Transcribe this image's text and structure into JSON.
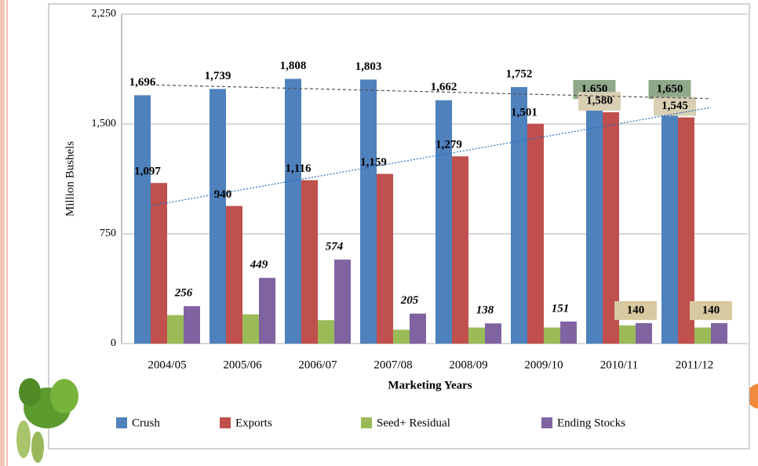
{
  "chart_data": {
    "type": "bar",
    "y_label": "Million Bushels",
    "x_label": "Marketing Years",
    "categories": [
      "2004/05",
      "2005/06",
      "2006/07",
      "2007/08",
      "2008/09",
      "2009/10",
      "2010/11",
      "2011/12"
    ],
    "series": [
      {
        "name": "Crush",
        "color": "#4f81bd",
        "values": [
          1696,
          1739,
          1808,
          1803,
          1662,
          1752,
          1650,
          1650
        ],
        "value_labels": [
          "1,696",
          "1,739",
          "1,808",
          "1,803",
          "1,662",
          "1,752",
          "1,650",
          "1,650"
        ]
      },
      {
        "name": "Exports",
        "color": "#c0504d",
        "values": [
          1097,
          940,
          1116,
          1159,
          1279,
          1501,
          1580,
          1545
        ],
        "value_labels": [
          "1,097",
          "940",
          "1,116",
          "1,159",
          "1,279",
          "1,501",
          "1,580",
          "1,545"
        ]
      },
      {
        "name": "Seed+ Residual",
        "color": "#9bbb59",
        "values": [
          195,
          200,
          160,
          95,
          110,
          110,
          125,
          110
        ]
      },
      {
        "name": "Ending Stocks",
        "color": "#8064a2",
        "values": [
          256,
          449,
          574,
          205,
          138,
          151,
          140,
          140
        ],
        "value_labels": [
          "256",
          "449",
          "574",
          "205",
          "138",
          "151",
          "140",
          "140"
        ]
      }
    ],
    "ylim": [
      0,
      2250
    ],
    "yticks": [
      0,
      750,
      {
        "value": 1500,
        "label": "1,500"
      },
      {
        "value": 2250,
        "label": "2,250"
      }
    ],
    "grid": true,
    "legend": "bottom"
  }
}
